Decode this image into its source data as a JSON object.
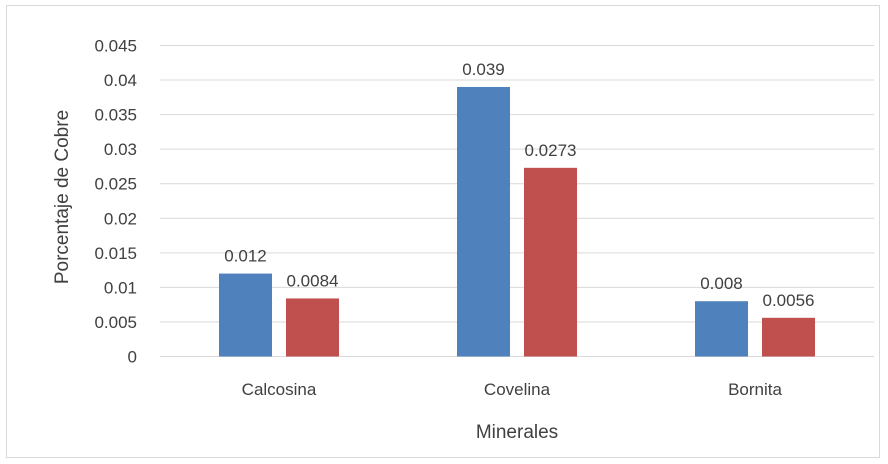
{
  "chart_data": {
    "type": "bar",
    "categories": [
      "Calcosina",
      "Covelina",
      "Bornita"
    ],
    "series": [
      {
        "values": [
          0.012,
          0.039,
          0.008
        ],
        "labels": [
          "0.012",
          "0.039",
          "0.008"
        ],
        "color": "#4f81bd"
      },
      {
        "values": [
          0.0084,
          0.0273,
          0.0056
        ],
        "labels": [
          "0.0084",
          "0.0273",
          "0.0056"
        ],
        "color": "#c0504d"
      }
    ],
    "title": "",
    "xlabel": "Minerales",
    "ylabel": "Porcentaje de Cobre",
    "ylim": [
      0,
      0.045
    ],
    "yticks": [
      "0",
      "0.005",
      "0.01",
      "0.015",
      "0.02",
      "0.025",
      "0.03",
      "0.035",
      "0.04",
      "0.045"
    ],
    "grid": true,
    "gridColor": "#d9d9d9",
    "legend": "none"
  }
}
